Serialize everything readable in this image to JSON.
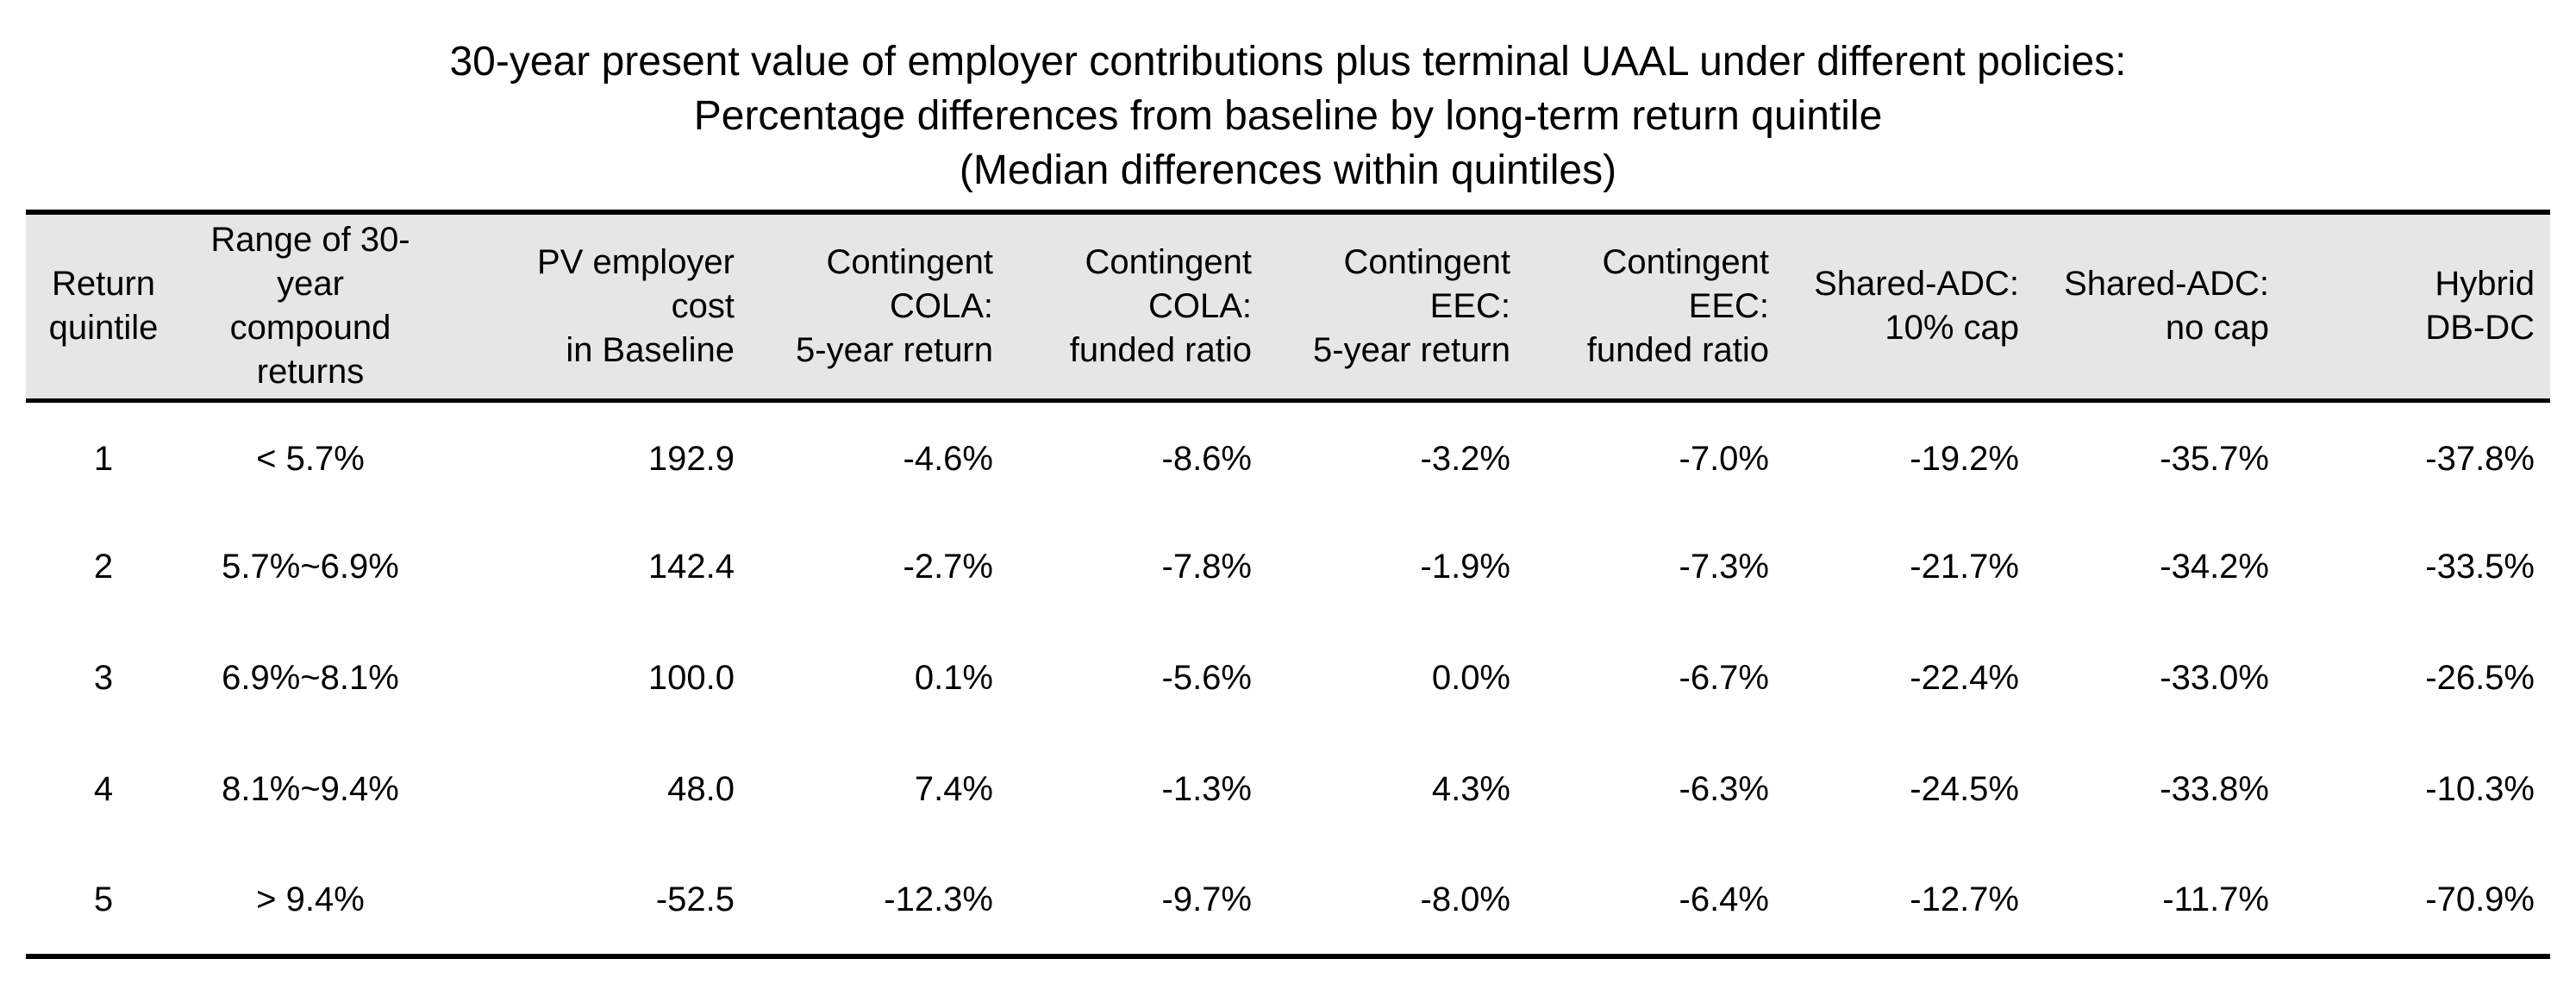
{
  "title": {
    "line1": "30-year present value of employer contributions plus terminal UAAL under different policies:",
    "line2": "Percentage differences from baseline by long-term return quintile",
    "line3": "(Median differences within quintiles)"
  },
  "table": {
    "headers": [
      "Return\nquintile",
      "Range of 30-year\ncompound\nreturns",
      "PV employer\ncost\nin Baseline",
      "Contingent\nCOLA:\n5-year return",
      "Contingent\nCOLA:\nfunded ratio",
      "Contingent\nEEC:\n5-year return",
      "Contingent\nEEC:\nfunded ratio",
      "Shared-ADC:\n10% cap",
      "Shared-ADC:\nno cap",
      "Hybrid\nDB-DC"
    ],
    "rows": [
      [
        "1",
        "< 5.7%",
        "192.9",
        "-4.6%",
        "-8.6%",
        "-3.2%",
        "-7.0%",
        "-19.2%",
        "-35.7%",
        "-37.8%"
      ],
      [
        "2",
        "5.7%~6.9%",
        "142.4",
        "-2.7%",
        "-7.8%",
        "-1.9%",
        "-7.3%",
        "-21.7%",
        "-34.2%",
        "-33.5%"
      ],
      [
        "3",
        "6.9%~8.1%",
        "100.0",
        "0.1%",
        "-5.6%",
        "0.0%",
        "-6.7%",
        "-22.4%",
        "-33.0%",
        "-26.5%"
      ],
      [
        "4",
        "8.1%~9.4%",
        "48.0",
        "7.4%",
        "-1.3%",
        "4.3%",
        "-6.3%",
        "-24.5%",
        "-33.8%",
        "-10.3%"
      ],
      [
        "5",
        "> 9.4%",
        "-52.5",
        "-12.3%",
        "-9.7%",
        "-8.0%",
        "-6.4%",
        "-12.7%",
        "-11.7%",
        "-70.9%"
      ]
    ]
  }
}
